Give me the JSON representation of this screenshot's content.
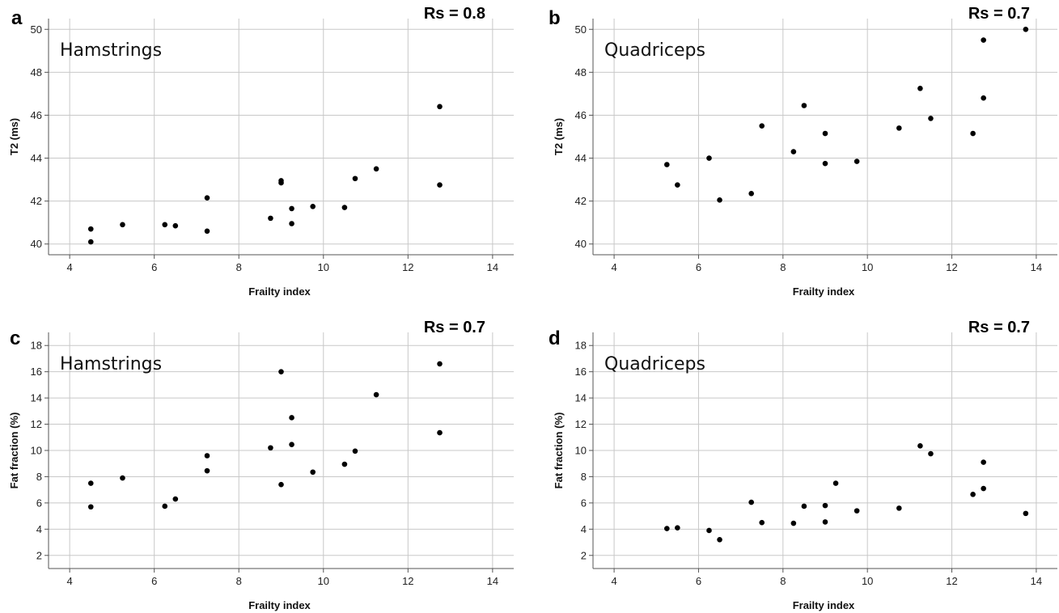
{
  "chart_data": [
    {
      "type": "scatter",
      "panel": "a",
      "title": "Hamstrings",
      "annotation": "Rs = 0.8",
      "xlabel": "Frailty index",
      "ylabel": "T2 (ms)",
      "xlim": [
        3.5,
        14.5
      ],
      "ylim": [
        39.5,
        50.5
      ],
      "xticks": [
        4,
        6,
        8,
        10,
        12,
        14
      ],
      "yticks": [
        40,
        42,
        44,
        46,
        48,
        50
      ],
      "grid": true,
      "points": [
        [
          4.5,
          40.7
        ],
        [
          4.5,
          40.1
        ],
        [
          5.25,
          40.9
        ],
        [
          6.25,
          40.9
        ],
        [
          6.5,
          40.85
        ],
        [
          7.25,
          42.15
        ],
        [
          7.25,
          40.6
        ],
        [
          8.75,
          41.2
        ],
        [
          9.0,
          42.95
        ],
        [
          9.0,
          42.85
        ],
        [
          9.25,
          41.65
        ],
        [
          9.25,
          40.95
        ],
        [
          9.75,
          41.75
        ],
        [
          10.5,
          41.7
        ],
        [
          10.75,
          43.05
        ],
        [
          11.25,
          43.5
        ],
        [
          12.75,
          46.4
        ],
        [
          12.75,
          42.75
        ]
      ]
    },
    {
      "type": "scatter",
      "panel": "b",
      "title": "Quadriceps",
      "annotation": "Rs = 0.7",
      "xlabel": "Frailty index",
      "ylabel": "T2 (ms)",
      "xlim": [
        3.5,
        14.5
      ],
      "ylim": [
        39.5,
        50.5
      ],
      "xticks": [
        4,
        6,
        8,
        10,
        12,
        14
      ],
      "yticks": [
        40,
        42,
        44,
        46,
        48,
        50
      ],
      "grid": true,
      "points": [
        [
          5.25,
          43.7
        ],
        [
          5.5,
          42.75
        ],
        [
          6.25,
          44.0
        ],
        [
          6.5,
          42.05
        ],
        [
          7.25,
          42.35
        ],
        [
          7.5,
          45.5
        ],
        [
          8.25,
          44.3
        ],
        [
          8.5,
          46.45
        ],
        [
          9.0,
          45.15
        ],
        [
          9.0,
          43.75
        ],
        [
          9.75,
          43.85
        ],
        [
          10.75,
          45.4
        ],
        [
          11.25,
          47.25
        ],
        [
          11.5,
          45.85
        ],
        [
          12.5,
          45.15
        ],
        [
          12.75,
          49.5
        ],
        [
          12.75,
          46.8
        ],
        [
          13.75,
          50.0
        ]
      ]
    },
    {
      "type": "scatter",
      "panel": "c",
      "title": "Hamstrings",
      "annotation": "Rs = 0.7",
      "xlabel": "Frailty index",
      "ylabel": "Fat fraction (%)",
      "xlim": [
        3.5,
        14.5
      ],
      "ylim": [
        1,
        19
      ],
      "xticks": [
        4,
        6,
        8,
        10,
        12,
        14
      ],
      "yticks": [
        2,
        4,
        6,
        8,
        10,
        12,
        14,
        16,
        18
      ],
      "grid": true,
      "points": [
        [
          4.5,
          7.5
        ],
        [
          4.5,
          5.7
        ],
        [
          5.25,
          7.9
        ],
        [
          6.25,
          5.75
        ],
        [
          6.5,
          6.3
        ],
        [
          7.25,
          9.6
        ],
        [
          7.25,
          8.45
        ],
        [
          8.75,
          10.2
        ],
        [
          9.0,
          16.0
        ],
        [
          9.0,
          7.4
        ],
        [
          9.25,
          12.5
        ],
        [
          9.25,
          10.45
        ],
        [
          9.75,
          8.35
        ],
        [
          10.5,
          8.95
        ],
        [
          10.75,
          9.95
        ],
        [
          11.25,
          14.25
        ],
        [
          12.75,
          16.6
        ],
        [
          12.75,
          11.35
        ]
      ]
    },
    {
      "type": "scatter",
      "panel": "d",
      "title": "Quadriceps",
      "annotation": "Rs = 0.7",
      "xlabel": "Frailty index",
      "ylabel": "Fat fraction (%)",
      "xlim": [
        3.5,
        14.5
      ],
      "ylim": [
        1,
        19
      ],
      "xticks": [
        4,
        6,
        8,
        10,
        12,
        14
      ],
      "yticks": [
        2,
        4,
        6,
        8,
        10,
        12,
        14,
        16,
        18
      ],
      "grid": true,
      "points": [
        [
          5.25,
          4.05
        ],
        [
          5.5,
          4.1
        ],
        [
          6.25,
          3.9
        ],
        [
          6.5,
          3.2
        ],
        [
          7.25,
          6.05
        ],
        [
          7.5,
          4.5
        ],
        [
          8.25,
          4.45
        ],
        [
          8.5,
          5.75
        ],
        [
          9.0,
          5.8
        ],
        [
          9.0,
          4.55
        ],
        [
          9.25,
          7.5
        ],
        [
          9.75,
          5.4
        ],
        [
          10.75,
          5.6
        ],
        [
          11.25,
          10.35
        ],
        [
          11.5,
          9.75
        ],
        [
          12.5,
          6.65
        ],
        [
          12.75,
          9.1
        ],
        [
          12.75,
          7.1
        ],
        [
          13.75,
          5.2
        ]
      ]
    }
  ]
}
